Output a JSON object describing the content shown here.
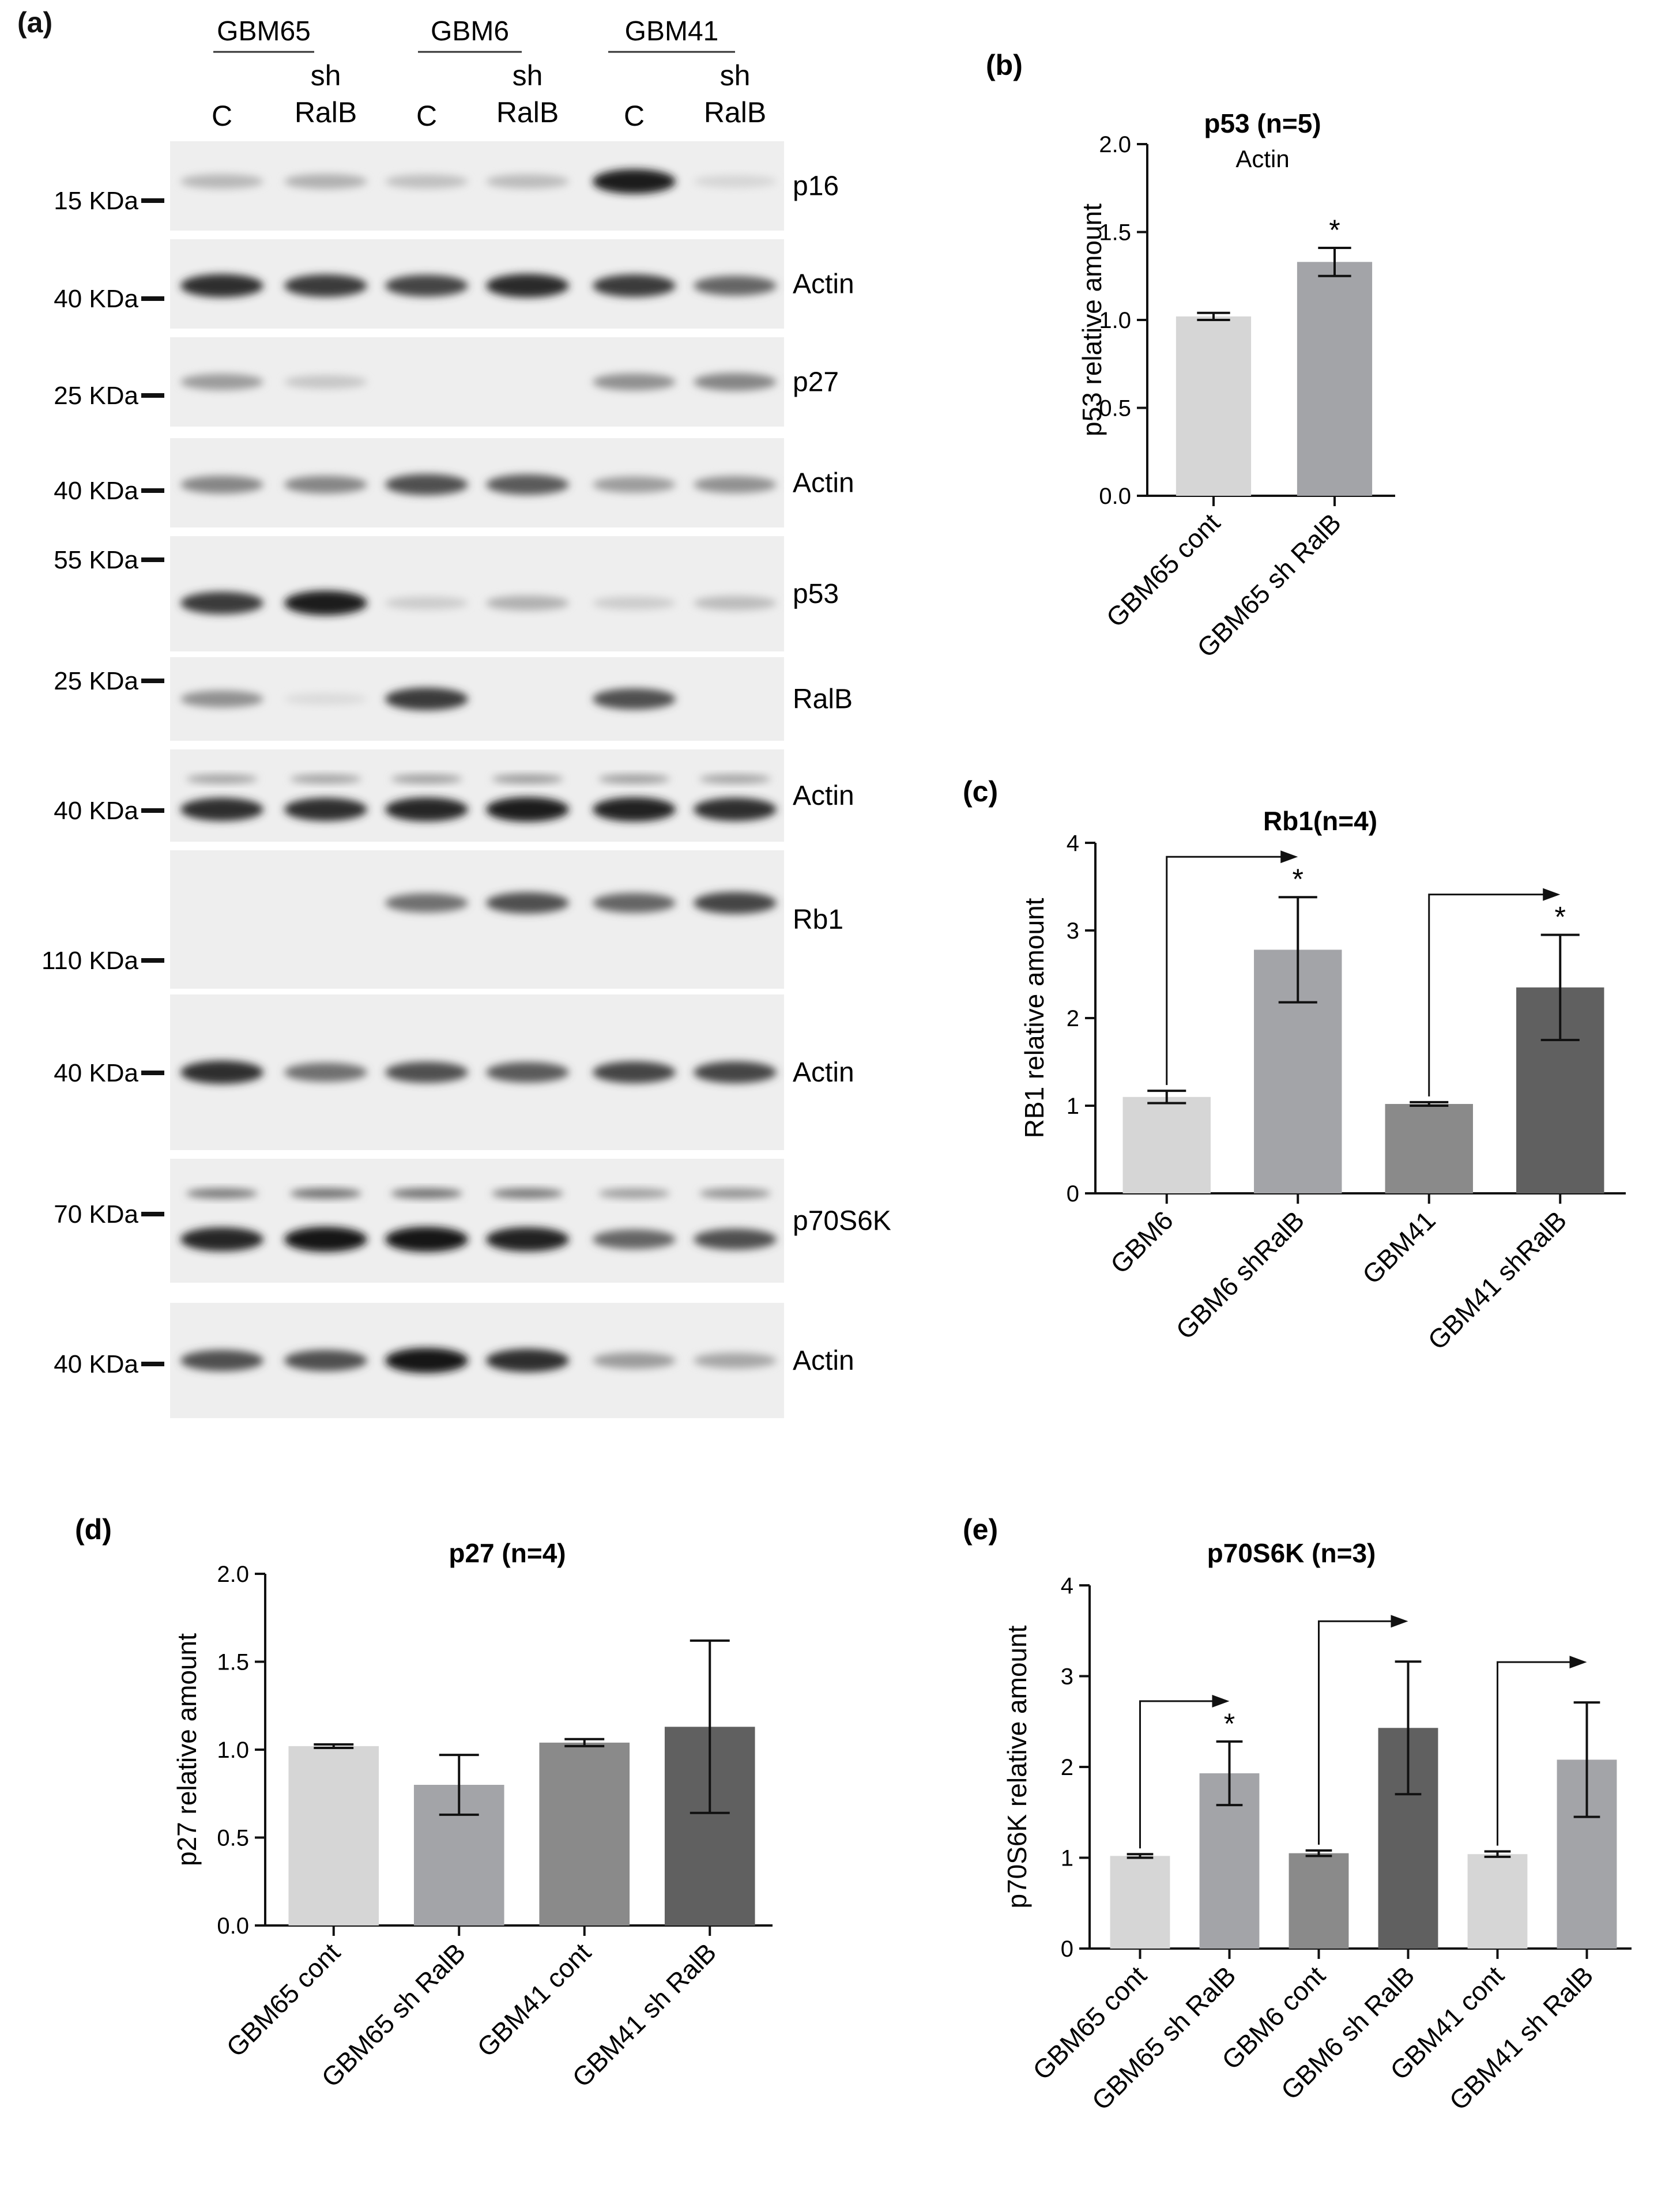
{
  "panel_a": {
    "label": "(a)",
    "groups": [
      {
        "name": "GBM65",
        "lanes": [
          "C",
          "sh\nRalB"
        ]
      },
      {
        "name": "GBM6",
        "lanes": [
          "C",
          "sh\nRalB"
        ]
      },
      {
        "name": "GBM41",
        "lanes": [
          "C",
          "sh\nRalB"
        ]
      }
    ],
    "lane_c": "C",
    "lane_sh_top": "sh",
    "lane_sh_bottom": "RalB",
    "blots": [
      {
        "target": "p16",
        "marker": "15 KDa"
      },
      {
        "target": "Actin",
        "marker": "40 KDa"
      },
      {
        "target": "p27",
        "marker": "25 KDa"
      },
      {
        "target": "Actin",
        "marker": "40 KDa"
      },
      {
        "target": "p53",
        "marker": "55 KDa"
      },
      {
        "target": "RalB",
        "marker": "25 KDa"
      },
      {
        "target": "Actin",
        "marker": "40 KDa"
      },
      {
        "target": "Rb1",
        "marker": "110 KDa"
      },
      {
        "target": "Actin",
        "marker": "40 KDa"
      },
      {
        "target": "p70S6K",
        "marker": "70 KDa"
      },
      {
        "target": "Actin",
        "marker": "40 KDa"
      }
    ]
  },
  "chart_data": [
    {
      "panel": "(b)",
      "type": "bar",
      "title": "p53 (n=5)",
      "annotation": "Actin",
      "ylabel": "p53 relative amount",
      "ylim": [
        0,
        2.0
      ],
      "yticks": [
        "0.0",
        "0.5",
        "1.0",
        "1.5",
        "2.0"
      ],
      "categories": [
        "GBM65 cont",
        "GBM65 sh RalB"
      ],
      "values": [
        1.02,
        1.33
      ],
      "errors": [
        0.02,
        0.08
      ],
      "significance": [
        "",
        "*"
      ],
      "colors": [
        "#d6d6d6",
        "#a3a4a8"
      ]
    },
    {
      "panel": "(c)",
      "type": "bar",
      "title": "Rb1(n=4)",
      "ylabel": "RB1 relative amount",
      "ylim": [
        0,
        4
      ],
      "yticks": [
        "0",
        "1",
        "2",
        "3",
        "4"
      ],
      "categories": [
        "GBM6",
        "GBM6 shRalB",
        "GBM41",
        "GBM41 shRalB"
      ],
      "values": [
        1.1,
        2.78,
        1.02,
        2.35
      ],
      "errors": [
        0.07,
        0.6,
        0.02,
        0.6
      ],
      "significance": [
        "",
        "*",
        "",
        "*"
      ],
      "comparisons": [
        [
          0,
          1
        ],
        [
          2,
          3
        ]
      ],
      "colors": [
        "#d6d6d6",
        "#a3a4a8",
        "#8a8a8a",
        "#606060"
      ]
    },
    {
      "panel": "(d)",
      "type": "bar",
      "title": "p27 (n=4)",
      "ylabel": "p27 relative amount",
      "ylim": [
        0,
        2.0
      ],
      "yticks": [
        "0.0",
        "0.5",
        "1.0",
        "1.5",
        "2.0"
      ],
      "categories": [
        "GBM65 cont",
        "GBM65 sh RalB",
        "GBM41 cont",
        "GBM41 sh RalB"
      ],
      "values": [
        1.02,
        0.8,
        1.04,
        1.13
      ],
      "errors": [
        0.01,
        0.17,
        0.02,
        0.49
      ],
      "significance": [
        "",
        "",
        "",
        ""
      ],
      "colors": [
        "#d6d6d6",
        "#a3a4a8",
        "#8a8a8a",
        "#606060"
      ]
    },
    {
      "panel": "(e)",
      "type": "bar",
      "title": "p70S6K (n=3)",
      "ylabel": "p70S6K relative amount",
      "ylim": [
        0,
        4
      ],
      "yticks": [
        "0",
        "1",
        "2",
        "3",
        "4"
      ],
      "categories": [
        "GBM65 cont",
        "GBM65 sh RalB",
        "GBM6 cont",
        "GBM6 sh RalB",
        "GBM41 cont",
        "GBM41 sh RalB"
      ],
      "values": [
        1.02,
        1.93,
        1.05,
        2.43,
        1.04,
        2.08
      ],
      "errors": [
        0.02,
        0.35,
        0.03,
        0.73,
        0.03,
        0.63
      ],
      "significance": [
        "",
        "*",
        "",
        "",
        "",
        ""
      ],
      "comparisons": [
        [
          0,
          1
        ],
        [
          2,
          3
        ],
        [
          4,
          5
        ]
      ],
      "colors": [
        "#d6d6d6",
        "#a3a4a8",
        "#8a8a8a",
        "#606060",
        "#d6d6d6",
        "#a3a4a8"
      ]
    }
  ]
}
